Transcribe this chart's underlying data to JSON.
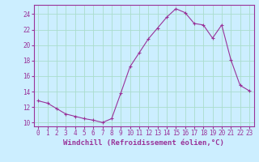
{
  "x": [
    0,
    1,
    2,
    3,
    4,
    5,
    6,
    7,
    8,
    9,
    10,
    11,
    12,
    13,
    14,
    15,
    16,
    17,
    18,
    19,
    20,
    21,
    22,
    23
  ],
  "y": [
    12.8,
    12.5,
    11.8,
    11.1,
    10.8,
    10.5,
    10.3,
    10.0,
    10.5,
    13.8,
    17.2,
    19.0,
    20.8,
    22.2,
    23.6,
    24.7,
    24.2,
    22.8,
    22.6,
    20.9,
    22.6,
    18.1,
    14.8,
    14.1
  ],
  "line_color": "#993399",
  "marker": "+",
  "bg_color": "#cceeff",
  "grid_color": "#aaddcc",
  "xlabel": "Windchill (Refroidissement éolien,°C)",
  "ylabel_ticks": [
    10,
    12,
    14,
    16,
    18,
    20,
    22,
    24
  ],
  "ylim": [
    9.5,
    25.2
  ],
  "xlim": [
    -0.5,
    23.5
  ],
  "xticks": [
    0,
    1,
    2,
    3,
    4,
    5,
    6,
    7,
    8,
    9,
    10,
    11,
    12,
    13,
    14,
    15,
    16,
    17,
    18,
    19,
    20,
    21,
    22,
    23
  ],
  "tick_color": "#993399",
  "label_color": "#993399",
  "font_size": 5.5,
  "xlabel_font_size": 6.5
}
